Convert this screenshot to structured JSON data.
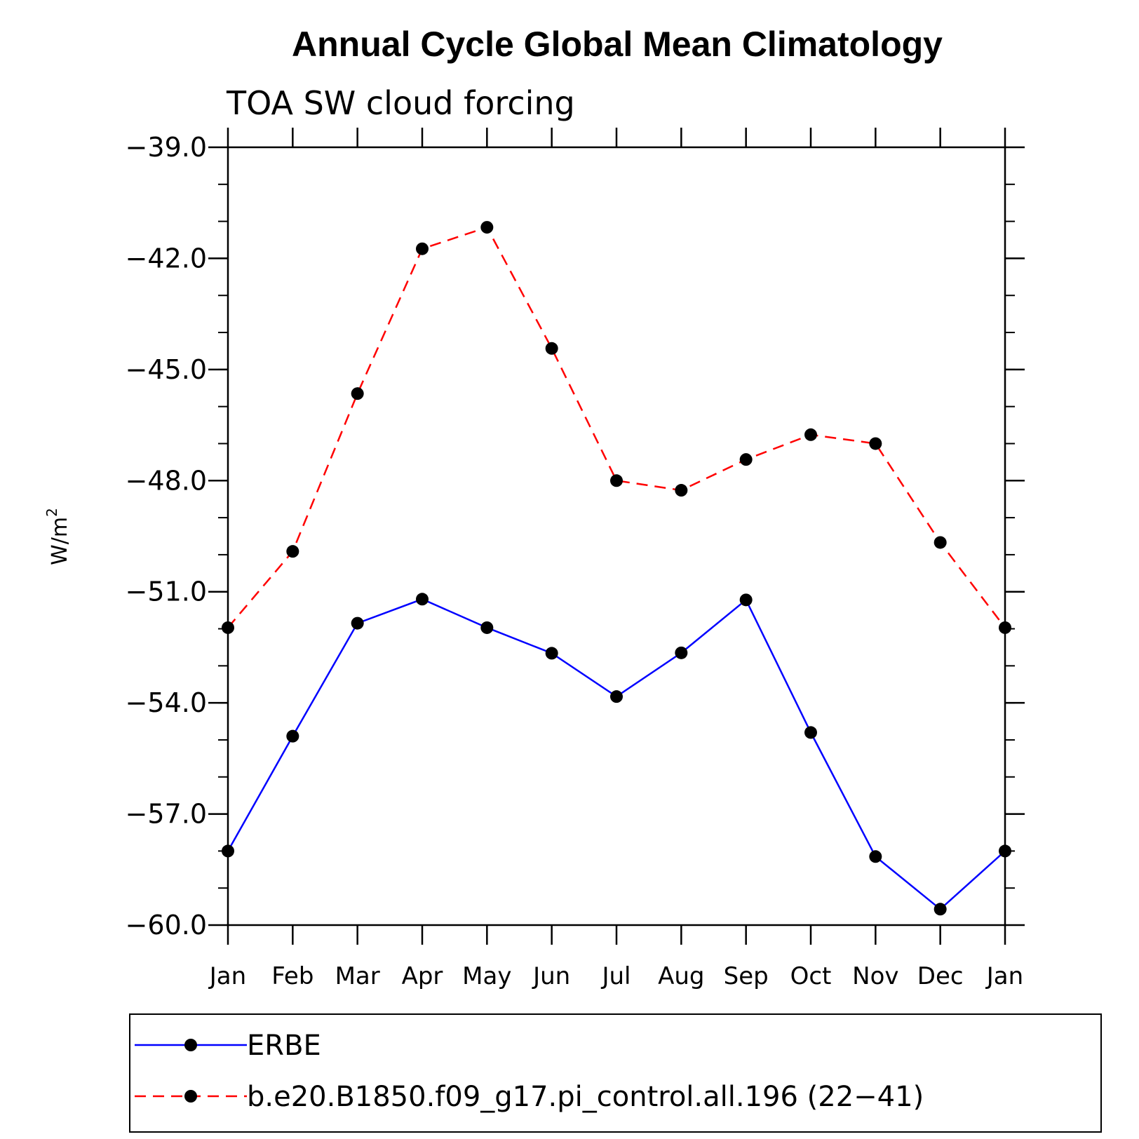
{
  "chart_data": {
    "type": "line",
    "title": "Annual Cycle Global Mean Climatology",
    "subtitle": "TOA SW cloud forcing",
    "ylabel": "W/m",
    "ylabel_superscript": "2",
    "xlabel": "",
    "categories": [
      "Jan",
      "Feb",
      "Mar",
      "Apr",
      "May",
      "Jun",
      "Jul",
      "Aug",
      "Sep",
      "Oct",
      "Nov",
      "Dec",
      "Jan"
    ],
    "ylim": [
      -60.0,
      -39.0
    ],
    "yticks": [
      -39.0,
      -42.0,
      -45.0,
      -48.0,
      -51.0,
      -54.0,
      -57.0,
      -60.0
    ],
    "ytick_labels": [
      "−39.0",
      "−42.0",
      "−45.0",
      "−48.0",
      "−51.0",
      "−54.0",
      "−57.0",
      "−60.0"
    ],
    "grid": false,
    "legend_position": "bottom",
    "series": [
      {
        "name": "ERBE",
        "color": "#0000ff",
        "line_style": "solid",
        "marker": "filled-circle",
        "values": [
          -58.0,
          -54.9,
          -51.85,
          -51.2,
          -51.97,
          -52.66,
          -53.83,
          -52.65,
          -51.22,
          -54.8,
          -58.15,
          -59.57,
          -58.0
        ]
      },
      {
        "name": "b.e20.B1850.f09_g17.pi_control.all.196 (22−41)",
        "color": "#ff0000",
        "line_style": "dashed",
        "marker": "filled-circle",
        "values": [
          -51.97,
          -49.91,
          -45.65,
          -41.74,
          -41.16,
          -44.43,
          -48.0,
          -48.26,
          -47.43,
          -46.76,
          -47.0,
          -49.67,
          -51.97
        ]
      }
    ]
  }
}
